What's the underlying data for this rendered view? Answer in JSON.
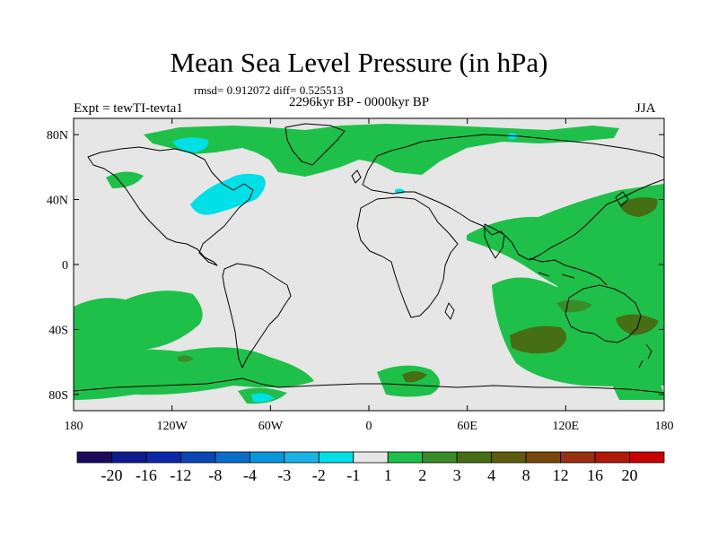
{
  "title": "Mean Sea Level Pressure (in hPa)",
  "stats": "rmsd= 0.912072 diff= 0.525513",
  "period": "2296kyr BP - 0000kyr BP",
  "experiment": "Expt = tewTI-tevta1",
  "season": "JJA",
  "map": {
    "lon_range": [
      -180,
      180
    ],
    "lat_range": [
      -90,
      90
    ],
    "background_color": "#e6e6e6",
    "lat_ticks": [
      {
        "value": 80,
        "label": "80N"
      },
      {
        "value": 40,
        "label": "40N"
      },
      {
        "value": 0,
        "label": "0"
      },
      {
        "value": -40,
        "label": "40S"
      },
      {
        "value": -80,
        "label": "80S"
      }
    ],
    "lon_ticks": [
      {
        "value": -180,
        "label": "180"
      },
      {
        "value": -120,
        "label": "120W"
      },
      {
        "value": -60,
        "label": "60W"
      },
      {
        "value": 0,
        "label": "0"
      },
      {
        "value": 60,
        "label": "60E"
      },
      {
        "value": 120,
        "label": "120E"
      },
      {
        "value": 180,
        "label": "180"
      }
    ]
  },
  "colorbar": {
    "colors": [
      "#1c0a5c",
      "#101a8c",
      "#0a28a8",
      "#0a46b4",
      "#0a6ec8",
      "#0a96dc",
      "#19b4e6",
      "#00e0e6",
      "#e6e6e6",
      "#1fc04a",
      "#3a8c28",
      "#466e14",
      "#5e5a0e",
      "#7a460c",
      "#963010",
      "#b01808",
      "#c80000"
    ],
    "labels": [
      "-20",
      "-16",
      "-12",
      "-8",
      "-4",
      "-3",
      "-2",
      "-1",
      "1",
      "2",
      "3",
      "4",
      "8",
      "12",
      "16",
      "20"
    ]
  }
}
